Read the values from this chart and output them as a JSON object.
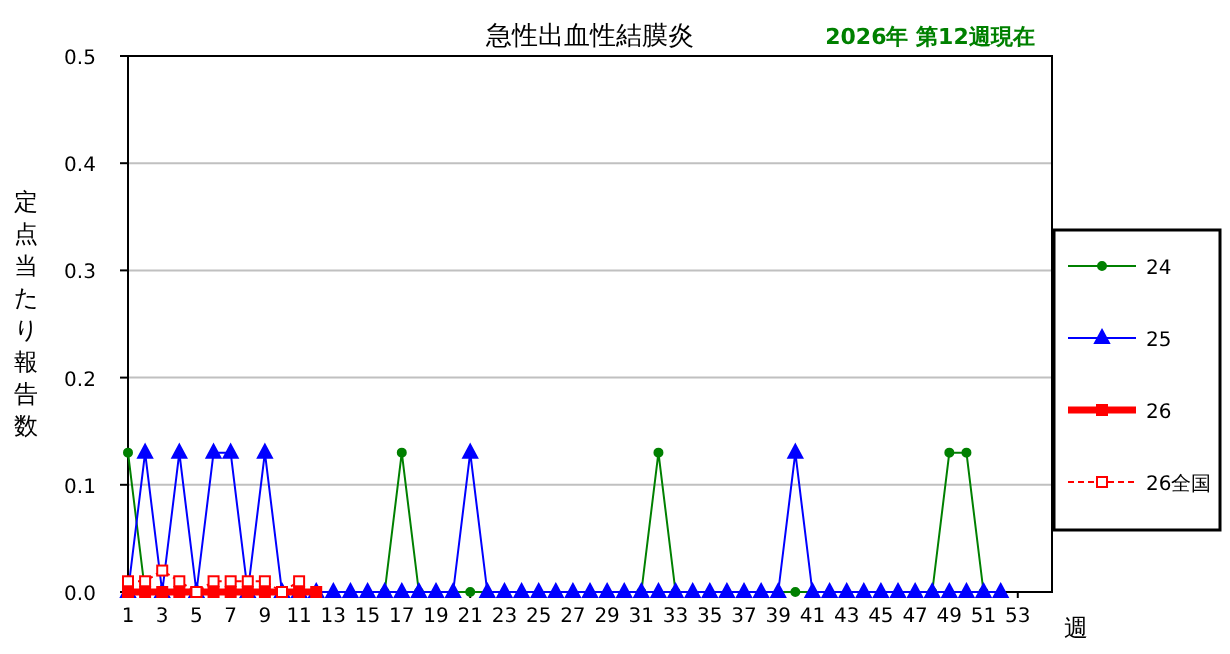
{
  "chart_data": {
    "type": "line",
    "title": "急性出血性結膜炎",
    "subtitle": "2026年 第12週現在",
    "xlabel": "週",
    "ylabel": "定点当たり報告数",
    "xlim": [
      1,
      55
    ],
    "xticks": [
      1,
      3,
      5,
      7,
      9,
      11,
      13,
      15,
      17,
      19,
      21,
      23,
      25,
      27,
      29,
      31,
      33,
      35,
      37,
      39,
      41,
      43,
      45,
      47,
      49,
      51,
      53
    ],
    "ylim": [
      0,
      0.5
    ],
    "yticks": [
      {
        "value": 0,
        "label": "0.0"
      },
      0.1,
      0.2,
      0.3,
      0.4,
      0.5
    ],
    "grid": "y",
    "legend": "right",
    "series": [
      {
        "name": "24",
        "color": "#008000",
        "marker": "circle",
        "line_style": "solid",
        "x": [
          1,
          2,
          16,
          17,
          18,
          21,
          31,
          32,
          33,
          40,
          48,
          49,
          50,
          51
        ],
        "values": [
          0.13,
          0,
          0,
          0.13,
          0,
          0,
          0,
          0.13,
          0,
          0,
          0,
          0.13,
          0.13,
          0
        ]
      },
      {
        "name": "25",
        "color": "#0000ff",
        "marker": "triangle",
        "line_style": "solid",
        "x": [
          1,
          2,
          3,
          4,
          5,
          6,
          7,
          8,
          9,
          10,
          11,
          12,
          13,
          14,
          15,
          16,
          17,
          18,
          19,
          20,
          21,
          22,
          23,
          24,
          25,
          26,
          27,
          28,
          29,
          30,
          31,
          32,
          33,
          34,
          35,
          36,
          37,
          38,
          39,
          40,
          41,
          42,
          43,
          44,
          45,
          46,
          47,
          48,
          49,
          50,
          51,
          52
        ],
        "values": [
          0,
          0.13,
          0,
          0.13,
          0,
          0.13,
          0.13,
          0,
          0.13,
          0,
          0,
          0,
          0,
          0,
          0,
          0,
          0,
          0,
          0,
          0,
          0.13,
          0,
          0,
          0,
          0,
          0,
          0,
          0,
          0,
          0,
          0,
          0,
          0,
          0,
          0,
          0,
          0,
          0,
          0,
          0.13,
          0,
          0,
          0,
          0,
          0,
          0,
          0,
          0,
          0,
          0,
          0,
          0
        ]
      },
      {
        "name": "26",
        "color": "#ff0000",
        "marker": "square",
        "line_style": "solid",
        "x": [
          1,
          2,
          3,
          4,
          5,
          6,
          7,
          8,
          9,
          10,
          11,
          12
        ],
        "values": [
          0,
          0,
          0,
          0,
          0,
          0,
          0,
          0,
          0,
          0,
          0,
          0
        ]
      },
      {
        "name": "26全国",
        "color": "#ff0000",
        "marker": "square",
        "line_style": "dashed",
        "x": [
          1,
          2,
          3,
          4,
          5,
          6,
          7,
          8,
          9,
          10,
          11
        ],
        "values": [
          0.01,
          0.01,
          0.02,
          0.01,
          0,
          0.01,
          0.01,
          0.01,
          0.01,
          0,
          0.01
        ]
      }
    ]
  }
}
